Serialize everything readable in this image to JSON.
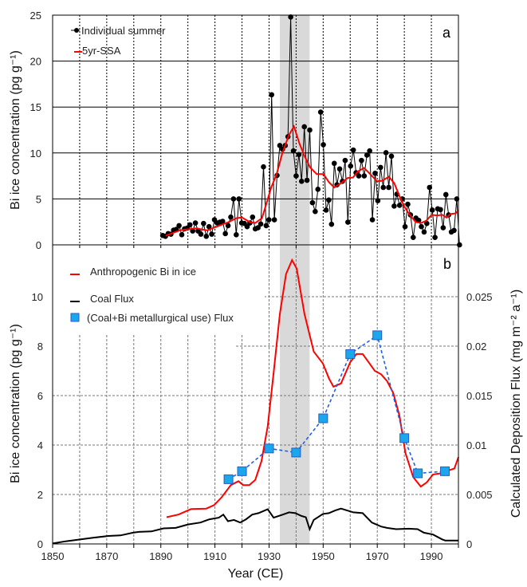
{
  "chart_data": [
    {
      "type": "line",
      "panel_label": "a",
      "ylabel": "Bi ice concentration (pg g⁻¹)",
      "xlim": [
        1850,
        2000
      ],
      "ylim": [
        0,
        25
      ],
      "yticks": [
        "0",
        "5",
        "10",
        "15",
        "20",
        "25"
      ],
      "grid": true,
      "legend_placement": "top-left",
      "shaded_interval": [
        1934,
        1945
      ],
      "series": [
        {
          "name": "Individual summer",
          "color": "#000000",
          "marker": "circle",
          "x_start": 1890.7,
          "x_step": 1.0064,
          "values": [
            1.02,
            0.93,
            1.22,
            1.16,
            1.6,
            1.69,
            2.09,
            1.1,
            1.74,
            1.83,
            2.18,
            1.51,
            2.38,
            1.51,
            1.16,
            2.33,
            0.93,
            1.98,
            1.16,
            2.73,
            2.38,
            2.47,
            2.56,
            1.22,
            2.09,
            3.02,
            5.0,
            1.1,
            5.0,
            2.38,
            2.33,
            1.98,
            2.38,
            3.02,
            1.74,
            1.86,
            2.27,
            8.49,
            2.09,
            2.73,
            16.34,
            2.73,
            7.56,
            10.81,
            10.41,
            10.81,
            11.77,
            24.8,
            10.23,
            7.5,
            9.83,
            6.92,
            12.85,
            7.03,
            12.5,
            4.59,
            3.63,
            6.05,
            14.45,
            10.9,
            3.78,
            4.88,
            2.24,
            8.87,
            6.54,
            8.26,
            6.92,
            9.19,
            2.47,
            8.58,
            10.32,
            7.85,
            7.5,
            9.19,
            7.5,
            9.77,
            10.23,
            2.73,
            7.79,
            4.8,
            8.43,
            6.25,
            10.03,
            6.25,
            9.65,
            4.22,
            5.52,
            4.3,
            5.0,
            1.98,
            4.42,
            3.26,
            0.81,
            2.91,
            2.67,
            1.98,
            1.4,
            2.33,
            6.25,
            3.78,
            0.81,
            3.92,
            3.84,
            1.86,
            5.47,
            3.26,
            1.4,
            1.57,
            5.0,
            0
          ]
        },
        {
          "name": "5yr-SSA",
          "color": "#ff0000",
          "x": [
            1891.8,
            1897.2,
            1903.2,
            1907.1,
            1911.1,
            1915.0,
            1918.0,
            1920.0,
            1922.9,
            1924.9,
            1927.4,
            1928.9,
            1930.8,
            1932.8,
            1934.8,
            1937.3,
            1939.2,
            1941.2,
            1943.2,
            1945.2,
            1947.6,
            1950.1,
            1952.1,
            1954.1,
            1956.5,
            1959.0,
            1961.0,
            1962.9,
            1965.1,
            1967.4,
            1969.9,
            1971.8,
            1974.3,
            1976.3,
            1978.3,
            1980.2,
            1982.0,
            1984.2,
            1986.2,
            1988.1,
            1990.1,
            1992.1,
            1994.1,
            1995.6,
            1997.0,
            1999.0,
            2000.0
          ],
          "values": [
            0.99,
            1.6,
            1.8,
            1.57,
            2.03,
            2.47,
            2.91,
            2.97,
            2.47,
            2.38,
            2.91,
            4.36,
            6.25,
            7.7,
            9.88,
            11.92,
            12.88,
            11.05,
            9.59,
            8.43,
            7.7,
            7.7,
            6.83,
            6.25,
            6.69,
            7.27,
            7.33,
            8.0,
            8.37,
            7.7,
            6.92,
            6.98,
            7.41,
            6.69,
            5.23,
            4.07,
            3.26,
            2.47,
            2.38,
            2.62,
            3.26,
            3.2,
            3.26,
            2.97,
            3.34,
            3.43,
            3.78
          ]
        }
      ]
    },
    {
      "type": "line",
      "panel_label": "b",
      "xlabel": "Year (CE)",
      "ylabel": "Bi ice concentration (pg g⁻¹)",
      "ylabel_right": "Calculated Deposition Flux (mg m⁻² a⁻¹)",
      "xlim": [
        1850,
        2000
      ],
      "ylim": [
        0,
        12
      ],
      "ylim_right": [
        0,
        0.03
      ],
      "xticks": [
        "1850",
        "1870",
        "1890",
        "1910",
        "1930",
        "1950",
        "1970",
        "1990"
      ],
      "yticks": [
        "0",
        "2",
        "4",
        "6",
        "8",
        "10"
      ],
      "yticks_right": [
        "0",
        "0.005",
        "0.01",
        "0.015",
        "0.02",
        "0.025"
      ],
      "grid": true,
      "legend_placement": "top-left",
      "shaded_interval": [
        1934,
        1945
      ],
      "series": [
        {
          "name": "Anthropogenic Bi in ice",
          "axis": "left",
          "color": "#ff0000",
          "x": [
            1892.1,
            1896.6,
            1901.2,
            1906.8,
            1909.7,
            1912.5,
            1915.9,
            1918.7,
            1920.4,
            1922.7,
            1924.9,
            1927.2,
            1929.5,
            1931.7,
            1934.0,
            1936.3,
            1938.5,
            1940.2,
            1943.1,
            1946.5,
            1949.9,
            1952.1,
            1953.8,
            1956.6,
            1960.0,
            1962.3,
            1964.6,
            1966.8,
            1969.1,
            1971.4,
            1973.6,
            1975.9,
            1978.2,
            1980.4,
            1983.3,
            1986.1,
            1988.3,
            1990.6,
            1994.0,
            1996.3,
            1998.5,
            2000.0
          ],
          "values": [
            1.08,
            1.19,
            1.41,
            1.43,
            1.57,
            1.89,
            2.38,
            2.54,
            2.38,
            2.38,
            2.59,
            3.35,
            4.76,
            6.92,
            9.3,
            10.92,
            11.48,
            11.14,
            9.3,
            7.78,
            7.3,
            6.7,
            6.36,
            6.49,
            7.35,
            7.68,
            7.68,
            7.35,
            7.0,
            6.86,
            6.59,
            6.11,
            5.19,
            3.68,
            2.7,
            2.32,
            2.49,
            2.81,
            2.86,
            2.97,
            3.05,
            3.51
          ]
        },
        {
          "name": "Coal Flux",
          "axis": "right",
          "color": "#000000",
          "x": [
            1850,
            1854.8,
            1860.4,
            1864.9,
            1870.6,
            1875.1,
            1879.7,
            1881.9,
            1886.5,
            1891,
            1895.5,
            1900,
            1904.6,
            1908,
            1911.4,
            1913.1,
            1914.8,
            1917,
            1919.3,
            1921.5,
            1923.8,
            1926.1,
            1927.2,
            1929.5,
            1931.7,
            1935.1,
            1937.4,
            1939.7,
            1941.9,
            1943.6,
            1945,
            1946.5,
            1949.9,
            1952.1,
            1954.4,
            1956.6,
            1958.9,
            1961.2,
            1964.6,
            1968,
            1971.4,
            1973.6,
            1977,
            1981.6,
            1984.9,
            1987.2,
            1990.6,
            1994,
            1995.1,
            2000
          ],
          "values": [
            5e-05,
            0.00027,
            0.00046,
            0.00062,
            0.00081,
            0.00086,
            0.00114,
            0.00122,
            0.00127,
            0.00157,
            0.00162,
            0.00197,
            0.00216,
            0.00249,
            0.00265,
            0.00297,
            0.0023,
            0.00243,
            0.00216,
            0.00249,
            0.00297,
            0.00311,
            0.00324,
            0.00351,
            0.00265,
            0.00297,
            0.00319,
            0.00311,
            0.00284,
            0.0027,
            0.00149,
            0.00243,
            0.00303,
            0.00311,
            0.00338,
            0.00357,
            0.00338,
            0.00319,
            0.00311,
            0.00216,
            0.00176,
            0.00162,
            0.00149,
            0.00154,
            0.00149,
            0.00114,
            0.00095,
            0.00046,
            0.00035,
            0.00035
          ]
        },
        {
          "name": "(Coal+Bi metallurgical use) Flux",
          "axis": "right",
          "color": "#1aa7ec",
          "line_color": "#1f5fe0",
          "marker": "square",
          "x": [
            1915,
            1920,
            1930,
            1940,
            1950,
            1960,
            1970,
            1980,
            1985,
            1995
          ],
          "values": [
            0.00654,
            0.00735,
            0.00965,
            0.00924,
            0.0127,
            0.0192,
            0.0211,
            0.0107,
            0.00714,
            0.00735
          ]
        }
      ]
    }
  ]
}
